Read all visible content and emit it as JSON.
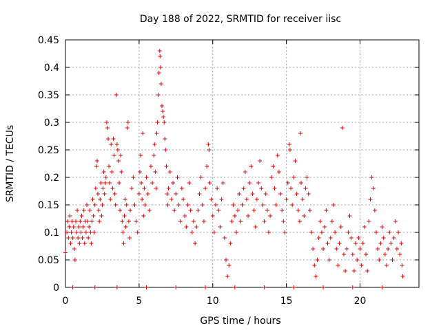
{
  "chart_data": {
    "type": "scatter",
    "title": "Day 188 of 2022, SRMTID for receiver iisc",
    "xlabel": "GPS time / hours",
    "ylabel": "SRMTID / TECUs",
    "xlim": [
      0,
      24
    ],
    "ylim": [
      0,
      0.45
    ],
    "xticks": [
      {
        "value": 0,
        "label": "0"
      },
      {
        "value": 5,
        "label": "5"
      },
      {
        "value": 10,
        "label": "10"
      },
      {
        "value": 15,
        "label": "15"
      },
      {
        "value": 20,
        "label": "20"
      }
    ],
    "yticks": [
      {
        "value": 0,
        "label": "0"
      },
      {
        "value": 0.05,
        "label": "0.05"
      },
      {
        "value": 0.1,
        "label": "0.1"
      },
      {
        "value": 0.15,
        "label": "0.15"
      },
      {
        "value": 0.2,
        "label": "0.2"
      },
      {
        "value": 0.25,
        "label": "0.25"
      },
      {
        "value": 0.3,
        "label": "0.3"
      },
      {
        "value": 0.35,
        "label": "0.35"
      },
      {
        "value": 0.4,
        "label": "0.4"
      },
      {
        "value": 0.45,
        "label": "0.45"
      }
    ],
    "grid": true,
    "marker": "+",
    "color": "#e00000",
    "series": [
      {
        "name": "SRMTID",
        "points": [
          [
            0.0,
            0.063
          ],
          [
            0.1,
            0.1
          ],
          [
            0.15,
            0.12
          ],
          [
            0.2,
            0.09
          ],
          [
            0.25,
            0.11
          ],
          [
            0.3,
            0.13
          ],
          [
            0.35,
            0.08
          ],
          [
            0.4,
            0.1
          ],
          [
            0.45,
            0.12
          ],
          [
            0.5,
            0.09
          ],
          [
            0.55,
            0.11
          ],
          [
            0.6,
            0.07
          ],
          [
            0.65,
            0.05
          ],
          [
            0.7,
            0.12
          ],
          [
            0.75,
            0.1
          ],
          [
            0.8,
            0.14
          ],
          [
            0.85,
            0.09
          ],
          [
            0.9,
            0.11
          ],
          [
            0.95,
            0.08
          ],
          [
            1.0,
            0.12
          ],
          [
            1.05,
            0.1
          ],
          [
            1.1,
            0.13
          ],
          [
            1.15,
            0.09
          ],
          [
            1.2,
            0.11
          ],
          [
            1.25,
            0.14
          ],
          [
            1.3,
            0.08
          ],
          [
            1.35,
            0.12
          ],
          [
            1.4,
            0.1
          ],
          [
            1.45,
            0.15
          ],
          [
            1.5,
            0.12
          ],
          [
            1.55,
            0.09
          ],
          [
            1.6,
            0.11
          ],
          [
            1.65,
            0.14
          ],
          [
            1.7,
            0.1
          ],
          [
            1.75,
            0.08
          ],
          [
            1.8,
            0.12
          ],
          [
            1.85,
            0.16
          ],
          [
            1.9,
            0.13
          ],
          [
            1.95,
            0.1
          ],
          [
            2.0,
            0.15
          ],
          [
            2.05,
            0.18
          ],
          [
            2.1,
            0.22
          ],
          [
            2.15,
            0.23
          ],
          [
            2.2,
            0.17
          ],
          [
            2.25,
            0.14
          ],
          [
            2.3,
            0.12
          ],
          [
            2.35,
            0.16
          ],
          [
            2.4,
            0.19
          ],
          [
            2.45,
            0.13
          ],
          [
            2.5,
            0.15
          ],
          [
            2.55,
            0.18
          ],
          [
            2.6,
            0.21
          ],
          [
            2.65,
            0.17
          ],
          [
            2.7,
            0.19
          ],
          [
            2.75,
            0.2
          ],
          [
            2.8,
            0.3
          ],
          [
            2.85,
            0.29
          ],
          [
            2.9,
            0.27
          ],
          [
            2.95,
            0.22
          ],
          [
            3.0,
            0.19
          ],
          [
            3.05,
            0.16
          ],
          [
            3.1,
            0.26
          ],
          [
            3.15,
            0.21
          ],
          [
            3.2,
            0.18
          ],
          [
            3.25,
            0.27
          ],
          [
            3.3,
            0.24
          ],
          [
            3.35,
            0.17
          ],
          [
            3.4,
            0.15
          ],
          [
            3.45,
            0.35
          ],
          [
            3.5,
            0.26
          ],
          [
            3.55,
            0.25
          ],
          [
            3.6,
            0.23
          ],
          [
            3.65,
            0.19
          ],
          [
            3.7,
            0.14
          ],
          [
            3.75,
            0.24
          ],
          [
            3.8,
            0.21
          ],
          [
            3.85,
            0.12
          ],
          [
            3.9,
            0.1
          ],
          [
            3.95,
            0.08
          ],
          [
            4.0,
            0.13
          ],
          [
            4.05,
            0.16
          ],
          [
            4.1,
            0.11
          ],
          [
            4.15,
            0.15
          ],
          [
            4.2,
            0.29
          ],
          [
            4.25,
            0.3
          ],
          [
            4.3,
            0.12
          ],
          [
            4.35,
            0.09
          ],
          [
            4.4,
            0.14
          ],
          [
            4.5,
            0.18
          ],
          [
            4.6,
            0.2
          ],
          [
            4.7,
            0.15
          ],
          [
            4.8,
            0.12
          ],
          [
            4.9,
            0.1
          ],
          [
            5.0,
            0.17
          ],
          [
            5.05,
            0.21
          ],
          [
            5.1,
            0.24
          ],
          [
            5.15,
            0.19
          ],
          [
            5.2,
            0.16
          ],
          [
            5.25,
            0.28
          ],
          [
            5.3,
            0.13
          ],
          [
            5.35,
            0.18
          ],
          [
            5.4,
            0.15
          ],
          [
            5.5,
            0.2
          ],
          [
            5.6,
            0.17
          ],
          [
            5.7,
            0.14
          ],
          [
            5.8,
            0.22
          ],
          [
            5.9,
            0.19
          ],
          [
            6.0,
            0.24
          ],
          [
            6.05,
            0.26
          ],
          [
            6.1,
            0.21
          ],
          [
            6.15,
            0.18
          ],
          [
            6.2,
            0.28
          ],
          [
            6.25,
            0.3
          ],
          [
            6.3,
            0.35
          ],
          [
            6.35,
            0.39
          ],
          [
            6.4,
            0.43
          ],
          [
            6.42,
            0.42
          ],
          [
            6.45,
            0.4
          ],
          [
            6.5,
            0.37
          ],
          [
            6.55,
            0.33
          ],
          [
            6.6,
            0.32
          ],
          [
            6.65,
            0.31
          ],
          [
            6.7,
            0.3
          ],
          [
            6.75,
            0.27
          ],
          [
            6.8,
            0.25
          ],
          [
            6.85,
            0.22
          ],
          [
            6.9,
            0.17
          ],
          [
            6.95,
            0.15
          ],
          [
            7.0,
            0.18
          ],
          [
            7.1,
            0.21
          ],
          [
            7.2,
            0.16
          ],
          [
            7.3,
            0.19
          ],
          [
            7.4,
            0.14
          ],
          [
            7.5,
            0.17
          ],
          [
            7.6,
            0.2
          ],
          [
            7.7,
            0.15
          ],
          [
            7.8,
            0.12
          ],
          [
            7.9,
            0.18
          ],
          [
            8.0,
            0.16
          ],
          [
            8.1,
            0.13
          ],
          [
            8.2,
            0.11
          ],
          [
            8.3,
            0.15
          ],
          [
            8.4,
            0.19
          ],
          [
            8.5,
            0.14
          ],
          [
            8.6,
            0.1
          ],
          [
            8.7,
            0.12
          ],
          [
            8.8,
            0.08
          ],
          [
            8.9,
            0.11
          ],
          [
            9.0,
            0.14
          ],
          [
            9.1,
            0.17
          ],
          [
            9.2,
            0.2
          ],
          [
            9.3,
            0.15
          ],
          [
            9.4,
            0.12
          ],
          [
            9.5,
            0.18
          ],
          [
            9.6,
            0.22
          ],
          [
            9.7,
            0.26
          ],
          [
            9.75,
            0.25
          ],
          [
            9.8,
            0.19
          ],
          [
            9.9,
            0.16
          ],
          [
            10.0,
            0.13
          ],
          [
            10.1,
            0.1
          ],
          [
            10.2,
            0.15
          ],
          [
            10.3,
            0.18
          ],
          [
            10.4,
            0.14
          ],
          [
            10.5,
            0.11
          ],
          [
            10.6,
            0.16
          ],
          [
            10.7,
            0.19
          ],
          [
            10.8,
            0.09
          ],
          [
            10.9,
            0.05
          ],
          [
            11.0,
            0.02
          ],
          [
            11.1,
            0.04
          ],
          [
            11.2,
            0.08
          ],
          [
            11.3,
            0.12
          ],
          [
            11.4,
            0.15
          ],
          [
            11.5,
            0.13
          ],
          [
            11.6,
            0.1
          ],
          [
            11.7,
            0.14
          ],
          [
            11.8,
            0.17
          ],
          [
            11.9,
            0.12
          ],
          [
            12.0,
            0.15
          ],
          [
            12.1,
            0.18
          ],
          [
            12.2,
            0.21
          ],
          [
            12.3,
            0.16
          ],
          [
            12.4,
            0.13
          ],
          [
            12.5,
            0.19
          ],
          [
            12.6,
            0.22
          ],
          [
            12.7,
            0.17
          ],
          [
            12.8,
            0.14
          ],
          [
            12.9,
            0.11
          ],
          [
            13.0,
            0.16
          ],
          [
            13.1,
            0.19
          ],
          [
            13.2,
            0.23
          ],
          [
            13.3,
            0.18
          ],
          [
            13.4,
            0.15
          ],
          [
            13.5,
            0.12
          ],
          [
            13.6,
            0.17
          ],
          [
            13.7,
            0.14
          ],
          [
            13.8,
            0.1
          ],
          [
            13.9,
            0.13
          ],
          [
            14.0,
            0.2
          ],
          [
            14.1,
            0.22
          ],
          [
            14.2,
            0.18
          ],
          [
            14.3,
            0.15
          ],
          [
            14.4,
            0.24
          ],
          [
            14.5,
            0.21
          ],
          [
            14.6,
            0.17
          ],
          [
            14.7,
            0.14
          ],
          [
            14.8,
            0.12
          ],
          [
            14.9,
            0.1
          ],
          [
            15.0,
            0.16
          ],
          [
            15.1,
            0.19
          ],
          [
            15.2,
            0.26
          ],
          [
            15.25,
            0.25
          ],
          [
            15.3,
            0.18
          ],
          [
            15.4,
            0.15
          ],
          [
            15.5,
            0.2
          ],
          [
            15.6,
            0.23
          ],
          [
            15.7,
            0.17
          ],
          [
            15.8,
            0.14
          ],
          [
            15.9,
            0.12
          ],
          [
            15.95,
            0.28
          ],
          [
            16.0,
            0.19
          ],
          [
            16.1,
            0.16
          ],
          [
            16.2,
            0.13
          ],
          [
            16.3,
            0.18
          ],
          [
            16.4,
            0.2
          ],
          [
            16.5,
            0.17
          ],
          [
            16.6,
            0.14
          ],
          [
            16.7,
            0.1
          ],
          [
            16.8,
            0.07
          ],
          [
            16.9,
            0.04
          ],
          [
            17.0,
            0.02
          ],
          [
            17.1,
            0.05
          ],
          [
            17.2,
            0.09
          ],
          [
            17.3,
            0.12
          ],
          [
            17.4,
            0.1
          ],
          [
            17.5,
            0.07
          ],
          [
            17.6,
            0.11
          ],
          [
            17.7,
            0.14
          ],
          [
            17.8,
            0.08
          ],
          [
            17.9,
            0.05
          ],
          [
            18.0,
            0.09
          ],
          [
            18.1,
            0.12
          ],
          [
            18.2,
            0.15
          ],
          [
            18.3,
            0.1
          ],
          [
            18.4,
            0.07
          ],
          [
            18.5,
            0.04
          ],
          [
            18.6,
            0.08
          ],
          [
            18.7,
            0.11
          ],
          [
            18.8,
            0.29
          ],
          [
            18.9,
            0.06
          ],
          [
            19.0,
            0.03
          ],
          [
            19.1,
            0.07
          ],
          [
            19.2,
            0.1
          ],
          [
            19.3,
            0.13
          ],
          [
            19.4,
            0.09
          ],
          [
            19.5,
            0.06
          ],
          [
            19.6,
            0.03
          ],
          [
            19.7,
            0.08
          ],
          [
            19.8,
            0.05
          ],
          [
            19.9,
            0.09
          ],
          [
            20.0,
            0.07
          ],
          [
            20.1,
            0.04
          ],
          [
            20.2,
            0.08
          ],
          [
            20.3,
            0.11
          ],
          [
            20.4,
            0.06
          ],
          [
            20.5,
            0.03
          ],
          [
            20.6,
            0.12
          ],
          [
            20.7,
            0.16
          ],
          [
            20.8,
            0.2
          ],
          [
            20.9,
            0.18
          ],
          [
            21.0,
            0.14
          ],
          [
            21.1,
            0.1
          ],
          [
            21.2,
            0.07
          ],
          [
            21.3,
            0.05
          ],
          [
            21.4,
            0.08
          ],
          [
            21.5,
            0.11
          ],
          [
            21.6,
            0.09
          ],
          [
            21.7,
            0.06
          ],
          [
            21.8,
            0.04
          ],
          [
            21.9,
            0.07
          ],
          [
            22.0,
            0.1
          ],
          [
            22.1,
            0.08
          ],
          [
            22.2,
            0.05
          ],
          [
            22.3,
            0.09
          ],
          [
            22.4,
            0.12
          ],
          [
            22.5,
            0.07
          ],
          [
            22.6,
            0.1
          ],
          [
            22.7,
            0.06
          ],
          [
            22.8,
            0.08
          ],
          [
            22.85,
            0.04
          ],
          [
            22.9,
            0.02
          ],
          [
            0.5,
            0.0
          ],
          [
            2.0,
            0.0
          ],
          [
            3.5,
            0.0
          ],
          [
            5.5,
            0.0
          ],
          [
            7.5,
            0.0
          ],
          [
            9.5,
            0.0
          ],
          [
            11.5,
            0.0
          ],
          [
            13.5,
            0.0
          ],
          [
            15.5,
            0.0
          ],
          [
            17.5,
            0.0
          ],
          [
            19.5,
            0.0
          ],
          [
            21.5,
            0.0
          ]
        ]
      }
    ]
  }
}
